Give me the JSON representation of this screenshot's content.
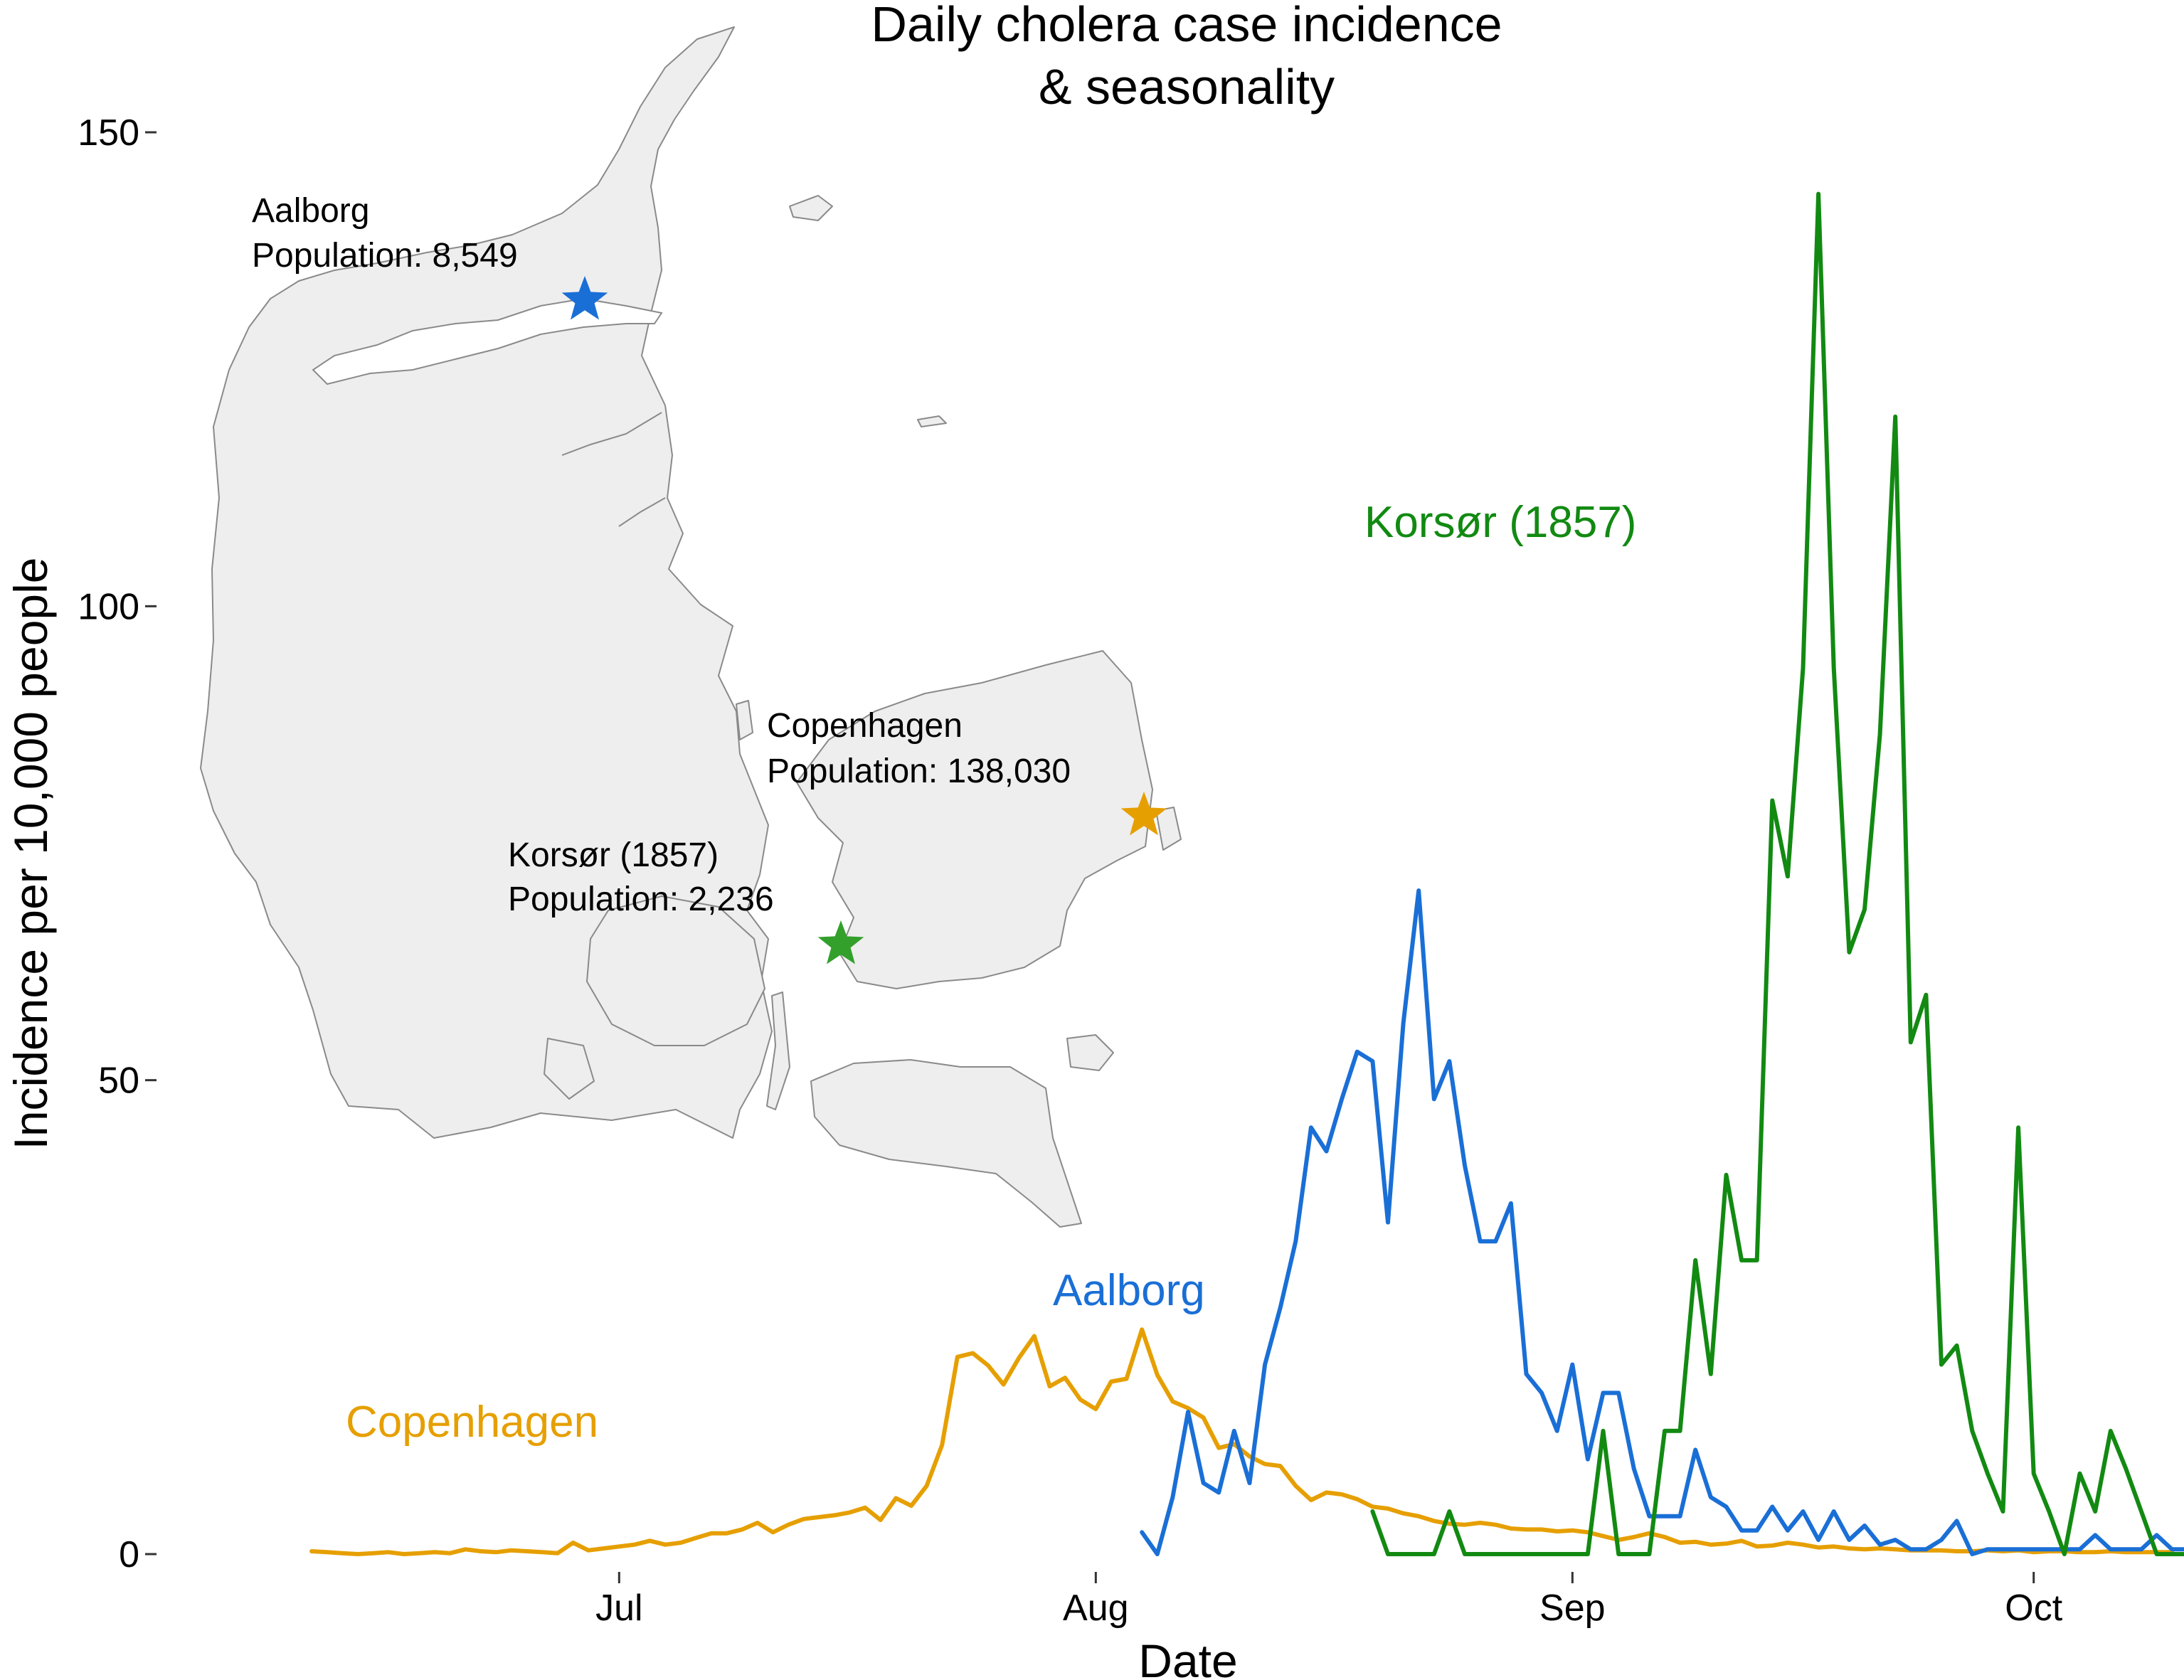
{
  "colors": {
    "copenhagen": "#E69F00",
    "aalborg": "#1A6FD6",
    "korsor": "#128A12",
    "korsor_star": "#33A02C"
  },
  "map": {
    "aalborg": {
      "name": "Aalborg",
      "population": "Population: 8,549"
    },
    "copenhagen": {
      "name": "Copenhagen",
      "population": "Population: 138,030"
    },
    "korsor": {
      "name": "Korsør (1857)",
      "population": "Population: 2,236"
    }
  },
  "chart_data": {
    "type": "line",
    "title": "Daily cholera case incidence\n& seasonality",
    "title_lines": [
      "Daily cholera case incidence",
      "& seasonality"
    ],
    "xlabel": "Date",
    "ylabel": "Incidence per 10,000 people",
    "ylim": [
      0,
      150
    ],
    "xlim": [
      "1853-06-06",
      "1853-10-08"
    ],
    "x_ticks": [
      {
        "date": "1853-07-01",
        "label": "Jul"
      },
      {
        "date": "1853-08-01",
        "label": "Aug"
      },
      {
        "date": "1853-09-01",
        "label": "Sep"
      },
      {
        "date": "1853-10-01",
        "label": "Oct"
      }
    ],
    "y_ticks": [
      0,
      50,
      100,
      150
    ],
    "grid": false,
    "legend": "none",
    "series": [
      {
        "name": "Copenhagen",
        "start": "1853-06-11",
        "values": [
          0.3,
          0.2,
          0.1,
          0,
          0.1,
          0.2,
          0,
          0.1,
          0.2,
          0.1,
          0.5,
          0.3,
          0.2,
          0.4,
          0.3,
          0.2,
          0.1,
          1.2,
          0.4,
          0.6,
          0.8,
          1.0,
          1.4,
          1.0,
          1.2,
          1.7,
          2.2,
          2.2,
          2.6,
          3.3,
          2.3,
          3.1,
          3.7,
          3.9,
          4.1,
          4.4,
          4.9,
          3.6,
          5.9,
          5.1,
          7.2,
          11.5,
          20.8,
          21.2,
          19.9,
          17.9,
          20.7,
          23.0,
          17.7,
          18.6,
          16.3,
          15.3,
          18.2,
          18.5,
          23.7,
          18.9,
          16.1,
          15.4,
          14.4,
          11.2,
          11.6,
          10.3,
          9.5,
          9.3,
          7.2,
          5.7,
          6.5,
          6.3,
          5.8,
          5.0,
          4.8,
          4.3,
          4.0,
          3.5,
          3.2,
          3.1,
          3.3,
          3.1,
          2.7,
          2.6,
          2.6,
          2.4,
          2.5,
          2.3,
          1.9,
          1.5,
          1.8,
          2.2,
          1.8,
          1.2,
          1.3,
          1.0,
          1.1,
          1.4,
          0.8,
          0.9,
          1.2,
          1.0,
          0.7,
          0.8,
          0.6,
          0.5,
          0.6,
          0.5,
          0.4,
          0.4,
          0.4,
          0.3,
          0.3,
          0.4,
          0.3,
          0.4,
          0.2,
          0.3,
          0.3,
          0.2,
          0.2,
          0.3,
          0.2,
          0.2,
          0.2,
          0.2
        ]
      },
      {
        "name": "Aalborg",
        "start": "1853-08-04",
        "values": [
          2.3,
          0,
          6.0,
          15.0,
          7.5,
          6.5,
          13.0,
          7.5,
          20.0,
          26.0,
          33.0,
          45.0,
          42.5,
          48.0,
          53.0,
          52.0,
          35.0,
          56.0,
          70.0,
          48.0,
          52.0,
          41.0,
          33.0,
          33.0,
          37.0,
          19.0,
          17.0,
          13.0,
          20.0,
          10.0,
          17.0,
          17.0,
          9.0,
          4.0,
          4.0,
          4.0,
          11.0,
          6.0,
          5.0,
          2.5,
          2.5,
          5.0,
          2.5,
          4.5,
          1.5,
          4.5,
          1.5,
          3.0,
          1.0,
          1.5,
          0.5,
          0.5,
          1.5,
          3.5,
          0,
          0.5,
          0.5,
          0.5,
          0.5,
          0.5,
          0.5,
          0.5,
          2.0,
          0.5,
          0.5,
          0.5,
          2.0,
          0.5,
          0.5,
          0.5
        ]
      },
      {
        "name": "Korsør (1857)",
        "start": "1853-08-19",
        "values": [
          4.5,
          0,
          0,
          0,
          0,
          4.5,
          0,
          0,
          0,
          0,
          0,
          0,
          0,
          0,
          0,
          13.0,
          0,
          0,
          0,
          13.0,
          13.0,
          31.0,
          19.0,
          40.0,
          31.0,
          31.0,
          79.5,
          71.5,
          93.5,
          143.5,
          93.5,
          63.5,
          68.0,
          86.5,
          120.0,
          54.0,
          59.0,
          20.0,
          22.0,
          13.0,
          8.5,
          4.5,
          45.0,
          8.5,
          4.5,
          0,
          8.5,
          4.5,
          13.0,
          9.0,
          4.5,
          0,
          0,
          0,
          0,
          0,
          0,
          8.5
        ]
      }
    ],
    "annotations": [
      "Copenhagen",
      "Aalborg",
      "Korsør (1857)"
    ]
  }
}
